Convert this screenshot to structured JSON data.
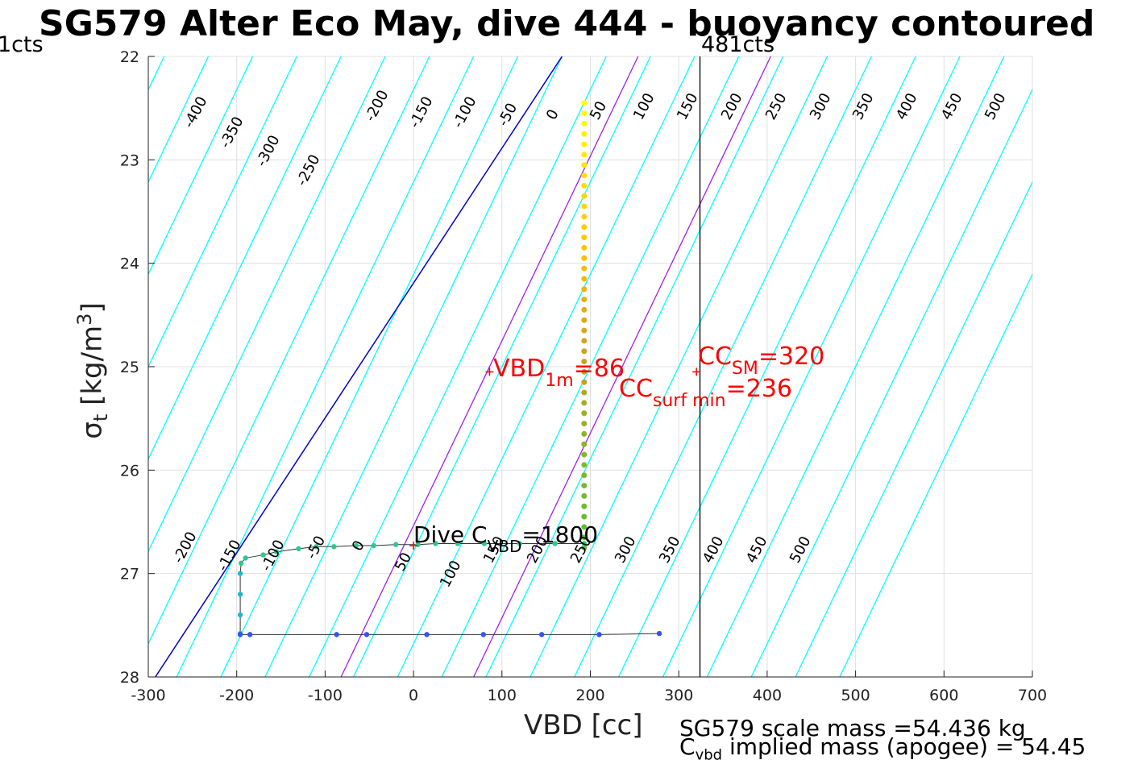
{
  "title": "SG579 Alter Eco May, dive 444 - buoyancy contoured",
  "corner_left": "1cts",
  "corner_right": "481cts",
  "ylabel_main": "σ",
  "ylabel_sub": "t",
  "ylabel_unit_pre": " [kg/m",
  "ylabel_unit_sup": "3",
  "ylabel_unit_post": "]",
  "annotations": {
    "vbd_main": "VBD",
    "vbd_sub": "1m",
    "vbd_val": "=86",
    "ccsm_main": "CC",
    "ccsm_sub": "SM",
    "ccsm_val": "=320",
    "ccsurf_main": "CC",
    "ccsurf_sub": "surf min",
    "ccsurf_val": "=236",
    "dive_main": "Dive C",
    "dive_sub": "VBD",
    "dive_val": "=1800",
    "mass_line1": "SG579 scale mass =54.436 kg",
    "mass_line2_main": "C",
    "mass_line2_sub": "vbd",
    "mass_line2_rest": " implied mass (apogee) = 54.45"
  },
  "colors": {
    "contour": "#00ffff",
    "zero_line": "#0000cd",
    "cc_lines": "#a020f0",
    "vertical_ref": "#000000",
    "markers": "#ff0000",
    "grid": "#e0e0e0"
  },
  "chart_data": {
    "type": "scatter",
    "xlabel": "VBD [cc]",
    "ylabel": "σt [kg/m3]",
    "xlim": [
      -300,
      700
    ],
    "ylim": [
      22,
      28
    ],
    "y_reversed": true,
    "grid": true,
    "xticks": [
      -300,
      -200,
      -100,
      0,
      100,
      200,
      300,
      400,
      500,
      600,
      700
    ],
    "yticks": [
      22,
      23,
      24,
      25,
      26,
      27,
      28
    ],
    "contour_levels": [
      -400,
      -350,
      -300,
      -250,
      -200,
      -150,
      -100,
      -50,
      0,
      50,
      100,
      150,
      200,
      250,
      300,
      350,
      400,
      450,
      500
    ],
    "contour_labels_top": [
      -400,
      -350,
      -300,
      -250,
      -200,
      -150,
      -100,
      -50,
      0,
      50,
      100,
      150,
      200,
      250,
      300,
      350,
      400,
      450,
      500
    ],
    "contour_labels_bottom": [
      -200,
      -150,
      -100,
      -50,
      0,
      50,
      100,
      150,
      200,
      250,
      300,
      350,
      400,
      450,
      500
    ],
    "purple_lines_at_sigma25": [
      86,
      236
    ],
    "vertical_ref_x": 324,
    "markers": [
      {
        "name": "VBD_1m",
        "x": 86,
        "y": 25.05
      },
      {
        "name": "CC_SM",
        "x": 320,
        "y": 25.05
      },
      {
        "name": "dive_C",
        "x": 0,
        "y": 26.73
      }
    ],
    "series": [
      {
        "vertical_x": 193,
        "y_points": [
          22.45,
          22.55,
          22.65,
          22.75,
          22.85,
          22.95,
          23.05,
          23.15,
          23.25,
          23.35,
          23.45,
          23.55,
          23.65,
          23.75,
          23.85,
          23.95,
          24.05,
          24.15,
          24.25,
          24.35,
          24.45,
          24.55,
          24.65,
          24.75,
          24.85,
          24.95,
          25.05,
          25.15,
          25.25,
          25.35,
          25.45,
          25.55,
          25.65,
          25.75,
          25.85,
          25.95,
          26.05,
          26.15,
          26.25,
          26.35,
          26.45,
          26.55,
          26.65,
          26.75
        ]
      },
      {
        "x": [
          193,
          160,
          120,
          80,
          50,
          25,
          5,
          -20,
          -45,
          -65,
          -90,
          -110,
          -130,
          -155,
          -170,
          -190,
          -195,
          -196,
          -196,
          -196,
          -196
        ],
        "y": [
          26.71,
          26.71,
          26.71,
          26.71,
          26.71,
          26.71,
          26.72,
          26.72,
          26.73,
          26.73,
          26.74,
          26.74,
          26.76,
          26.79,
          26.82,
          26.85,
          26.9,
          27.0,
          27.2,
          27.4,
          27.58
        ]
      },
      {
        "x": [
          -196,
          -185,
          -87,
          -53,
          15,
          79,
          145,
          210,
          278
        ],
        "y": [
          27.59,
          27.59,
          27.59,
          27.59,
          27.59,
          27.59,
          27.59,
          27.59,
          27.58
        ]
      }
    ]
  }
}
